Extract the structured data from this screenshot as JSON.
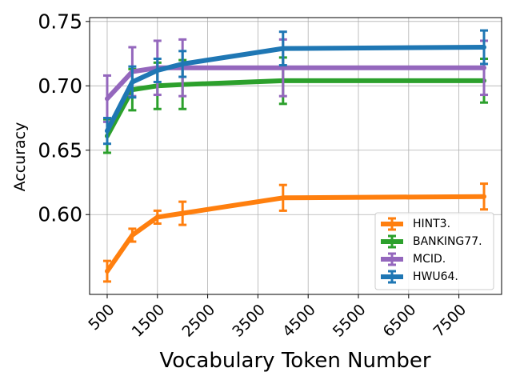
{
  "chart_data": {
    "type": "line",
    "title": "",
    "xlabel": "Vocabulary Token Number",
    "ylabel": "Accuracy",
    "x": [
      500,
      1000,
      1500,
      2000,
      4000,
      8000
    ],
    "xlim": [
      150,
      8350
    ],
    "ylim": [
      0.538,
      0.753
    ],
    "xticks": [
      500,
      1500,
      2500,
      3500,
      4500,
      5500,
      6500,
      7500
    ],
    "xtick_labels": [
      "500",
      "1500",
      "2500",
      "3500",
      "4500",
      "5500",
      "6500",
      "7500"
    ],
    "yticks": [
      0.6,
      0.65,
      0.7,
      0.75
    ],
    "ytick_labels": [
      "0.60",
      "0.65",
      "0.70",
      "0.75"
    ],
    "grid": true,
    "legend_position": "lower-right",
    "series": [
      {
        "name": "HINT3.",
        "color": "#ff7f0e",
        "values": [
          0.556,
          0.584,
          0.598,
          0.601,
          0.613,
          0.614
        ],
        "errors": [
          0.008,
          0.005,
          0.005,
          0.009,
          0.01,
          0.01
        ]
      },
      {
        "name": "BANKING77.",
        "color": "#2ca02c",
        "values": [
          0.661,
          0.697,
          0.7,
          0.701,
          0.704,
          0.704
        ],
        "errors": [
          0.013,
          0.016,
          0.018,
          0.019,
          0.018,
          0.017
        ]
      },
      {
        "name": "MCID.",
        "color": "#9467bd",
        "values": [
          0.69,
          0.711,
          0.714,
          0.714,
          0.714,
          0.714
        ],
        "errors": [
          0.018,
          0.019,
          0.021,
          0.022,
          0.022,
          0.021
        ]
      },
      {
        "name": "HWU64.",
        "color": "#1f77b4",
        "values": [
          0.665,
          0.703,
          0.712,
          0.717,
          0.729,
          0.73
        ],
        "errors": [
          0.01,
          0.012,
          0.009,
          0.01,
          0.013,
          0.013
        ]
      }
    ]
  }
}
